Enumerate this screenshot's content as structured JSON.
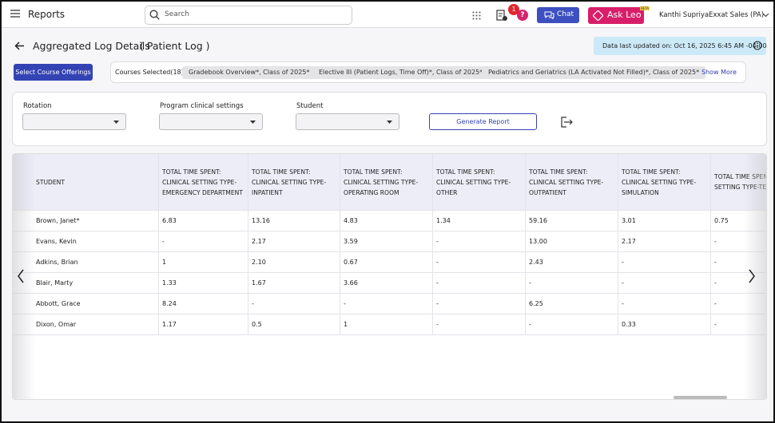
{
  "topbar": {
    "title": "Reports",
    "search_placeholder": "Search",
    "notification_count": 1,
    "help": "?",
    "chat": "Chat",
    "ask_leo": "Ask Leo",
    "beta": "BETA",
    "user_name": "Kanthi Supriya",
    "organization": "Exxat Sales (PA)"
  },
  "header": {
    "title": "Aggregated Log Details",
    "subtitle": "( Patient Log )",
    "last_updated": "Data last updated on: Oct 16, 2025 6:45 AM -04:00"
  },
  "courses": {
    "button": "Select Course Offerings",
    "label": "Courses Selected(18):",
    "chips": [
      "Gradebook Overview*, Class of 2025*",
      "Elective III (Patient Logs, Time Off)*, Class of 2025*",
      "Pediatrics and Geriatrics (LA Activated Not Filled)*, Class of 2025*"
    ],
    "show_more": "Show More"
  },
  "filters": {
    "fields": [
      "Rotation",
      "Program clinical settings",
      "Student"
    ],
    "generate": "Generate Report"
  },
  "table": {
    "columns": [
      "STUDENT",
      "TOTAL TIME SPENT: CLINICAL SETTING TYPE-EMERGENCY DEPARTMENT",
      "TOTAL TIME SPENT: CLINICAL SETTING TYPE-INPATIENT",
      "TOTAL TIME SPENT: CLINICAL SETTING TYPE-OPERATING ROOM",
      "TOTAL TIME SPENT: CLINICAL SETTING TYPE-OTHER",
      "TOTAL TIME SPENT: CLINICAL SETTING TYPE-OUTPATIENT",
      "TOTAL TIME SPENT: CLINICAL SETTING TYPE-SIMULATION",
      "TOTAL TIME SPENT: CLINICAL SETTING TYPE-TELEMEDICINE/"
    ],
    "rows": [
      [
        "Brown, Janet*",
        "6.83",
        "13.16",
        "4.83",
        "1.34",
        "59.16",
        "3.01",
        "0.75"
      ],
      [
        "Evans, Kevin",
        "-",
        "2.17",
        "3.59",
        "-",
        "13.00",
        "2.17",
        "-"
      ],
      [
        "Adkins, Brian",
        "1",
        "2.10",
        "0.67",
        "-",
        "2.43",
        "-",
        "-"
      ],
      [
        "Blair, Marty",
        "1.33",
        "1.67",
        "3.66",
        "-",
        "-",
        "-",
        "-"
      ],
      [
        "Abbott, Grace",
        "8.24",
        "-",
        "-",
        "-",
        "6.25",
        "-",
        "-"
      ],
      [
        "Dixon, Omar",
        "1.17",
        "0.5",
        "1",
        "-",
        "-",
        "0.33",
        "-"
      ]
    ]
  }
}
